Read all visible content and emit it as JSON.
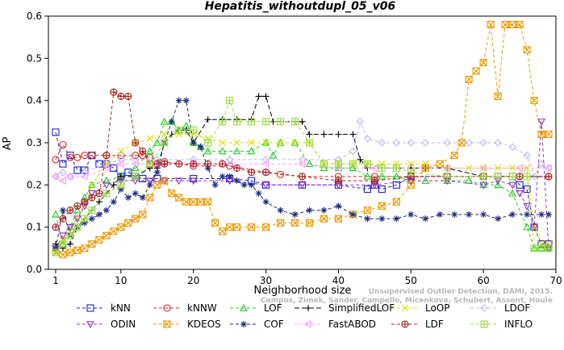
{
  "chart_data": {
    "type": "line",
    "title": "Hepatitis_withoutdupl_05_v06",
    "xlabel": "Neighborhood size",
    "ylabel": "AP",
    "xlim": [
      0,
      70
    ],
    "ylim": [
      0,
      0.6
    ],
    "xticks": [
      1,
      10,
      20,
      30,
      40,
      50,
      60,
      70
    ],
    "yticks": [
      0.0,
      0.1,
      0.2,
      0.3,
      0.4,
      0.5,
      0.6
    ],
    "grid": false,
    "legend_position": "bottom",
    "series": [
      {
        "name": "kNN",
        "color": "#2020cc",
        "marker": "square",
        "dash": "4,3",
        "x": [
          1,
          2,
          3,
          4,
          5,
          6,
          7,
          8,
          9,
          10,
          11,
          12,
          13,
          15,
          20,
          25,
          28,
          30,
          35,
          40,
          44,
          45,
          46,
          48,
          50,
          55,
          60,
          62,
          64,
          65,
          66,
          67,
          68,
          69
        ],
        "y": [
          0.325,
          0.25,
          0.27,
          0.235,
          0.235,
          0.27,
          0.25,
          0.25,
          0.24,
          0.22,
          0.23,
          0.22,
          0.215,
          0.215,
          0.215,
          0.215,
          0.21,
          0.2,
          0.2,
          0.2,
          0.19,
          0.2,
          0.19,
          0.2,
          0.22,
          0.22,
          0.22,
          0.22,
          0.22,
          0.2,
          0.19,
          0.1,
          0.06,
          0.06
        ]
      },
      {
        "name": "kNNW",
        "color": "#dd2222",
        "marker": "circle",
        "dash": "4,3",
        "x": [
          1,
          2,
          3,
          4,
          5,
          6,
          8,
          10,
          12,
          13,
          14,
          16,
          20,
          25,
          30,
          32,
          35,
          40,
          45,
          50,
          55,
          60,
          65,
          69
        ],
        "y": [
          0.26,
          0.295,
          0.265,
          0.265,
          0.27,
          0.27,
          0.27,
          0.27,
          0.27,
          0.27,
          0.265,
          0.255,
          0.245,
          0.245,
          0.23,
          0.225,
          0.22,
          0.22,
          0.22,
          0.22,
          0.22,
          0.22,
          0.22,
          0.22
        ]
      },
      {
        "name": "LOF",
        "color": "#22cc22",
        "marker": "triangle",
        "dash": "4,3",
        "x": [
          1,
          2,
          3,
          4,
          5,
          6,
          8,
          10,
          12,
          14,
          15,
          16,
          17,
          18,
          19,
          20,
          21,
          22,
          24,
          26,
          28,
          30,
          31,
          32,
          34,
          36,
          38,
          40,
          42,
          44,
          46,
          48,
          50,
          52,
          55,
          58,
          60,
          62,
          64,
          66,
          67,
          68,
          69
        ],
        "y": [
          0.13,
          0.06,
          0.1,
          0.14,
          0.17,
          0.2,
          0.21,
          0.22,
          0.24,
          0.28,
          0.3,
          0.35,
          0.35,
          0.33,
          0.34,
          0.3,
          0.29,
          0.28,
          0.28,
          0.28,
          0.28,
          0.3,
          0.27,
          0.3,
          0.3,
          0.25,
          0.24,
          0.24,
          0.24,
          0.22,
          0.22,
          0.22,
          0.21,
          0.21,
          0.21,
          0.21,
          0.2,
          0.2,
          0.18,
          0.1,
          0.05,
          0.05,
          0.05
        ]
      },
      {
        "name": "SimplifiedLOF",
        "color": "#000000",
        "marker": "plus",
        "dash": "6,3",
        "x": [
          1,
          2,
          3,
          4,
          5,
          6,
          7,
          8,
          9,
          10,
          12,
          14,
          15,
          16,
          17,
          18,
          19,
          20,
          22,
          24,
          26,
          28,
          29,
          30,
          31,
          32,
          34,
          35,
          36,
          38,
          40,
          42,
          43,
          44,
          46,
          48,
          50,
          52,
          55,
          60,
          65,
          69
        ],
        "y": [
          0.06,
          0.05,
          0.06,
          0.1,
          0.12,
          0.14,
          0.16,
          0.18,
          0.2,
          0.22,
          0.22,
          0.24,
          0.24,
          0.3,
          0.32,
          0.33,
          0.33,
          0.3,
          0.355,
          0.355,
          0.355,
          0.355,
          0.41,
          0.41,
          0.35,
          0.35,
          0.35,
          0.35,
          0.32,
          0.32,
          0.32,
          0.32,
          0.26,
          0.24,
          0.24,
          0.24,
          0.24,
          0.24,
          0.24,
          0.22,
          0.22,
          0.22
        ]
      },
      {
        "name": "LoOP",
        "color": "#dddd00",
        "marker": "x",
        "dash": "4,3",
        "x": [
          1,
          2,
          3,
          4,
          5,
          6,
          8,
          10,
          12,
          14,
          16,
          18,
          20,
          22,
          24,
          26,
          28,
          30,
          32,
          34,
          36,
          38,
          40,
          42,
          44,
          46,
          48,
          50,
          52,
          55,
          58,
          60,
          62,
          64,
          66,
          67,
          68,
          69
        ],
        "y": [
          0.05,
          0.07,
          0.09,
          0.12,
          0.15,
          0.2,
          0.25,
          0.28,
          0.3,
          0.31,
          0.32,
          0.32,
          0.32,
          0.31,
          0.3,
          0.3,
          0.3,
          0.3,
          0.3,
          0.3,
          0.3,
          0.25,
          0.25,
          0.25,
          0.25,
          0.25,
          0.25,
          0.25,
          0.25,
          0.24,
          0.24,
          0.24,
          0.24,
          0.24,
          0.24,
          0.1,
          0.06,
          0.06
        ]
      },
      {
        "name": "LDOF",
        "color": "#bbbbee",
        "marker": "diamond",
        "dash": "4,3",
        "x": [
          1,
          2,
          3,
          5,
          8,
          10,
          12,
          15,
          20,
          25,
          30,
          35,
          40,
          42,
          43,
          44,
          46,
          48,
          50,
          52,
          55,
          58,
          60,
          62,
          64,
          66,
          67,
          68,
          69
        ],
        "y": [
          0.22,
          0.23,
          0.22,
          0.23,
          0.25,
          0.26,
          0.26,
          0.26,
          0.26,
          0.26,
          0.26,
          0.26,
          0.26,
          0.28,
          0.35,
          0.31,
          0.3,
          0.3,
          0.3,
          0.3,
          0.3,
          0.3,
          0.3,
          0.3,
          0.29,
          0.27,
          0.22,
          0.25,
          0.24
        ]
      },
      {
        "name": "ODIN",
        "color": "#9933cc",
        "marker": "triangle-down",
        "dash": "4,3",
        "x": [
          1,
          2,
          3,
          4,
          5,
          6,
          8,
          10,
          12,
          14,
          16,
          18,
          20,
          25,
          30,
          35,
          40,
          45,
          50,
          55,
          60,
          62,
          64,
          65,
          66,
          67,
          68,
          69
        ],
        "y": [
          0.05,
          0.08,
          0.1,
          0.12,
          0.15,
          0.18,
          0.2,
          0.21,
          0.21,
          0.21,
          0.21,
          0.21,
          0.21,
          0.21,
          0.2,
          0.2,
          0.2,
          0.2,
          0.21,
          0.21,
          0.2,
          0.21,
          0.2,
          0.18,
          0.15,
          0.1,
          0.35,
          0.05
        ]
      },
      {
        "name": "KDEOS",
        "color": "#ee9900",
        "marker": "square-x",
        "dash": "4,3",
        "x": [
          1,
          2,
          3,
          4,
          5,
          6,
          7,
          8,
          9,
          10,
          11,
          12,
          13,
          14,
          15,
          16,
          17,
          18,
          19,
          20,
          21,
          22,
          23,
          24,
          25,
          26,
          28,
          30,
          32,
          34,
          36,
          38,
          40,
          42,
          44,
          46,
          48,
          50,
          52,
          54,
          56,
          57,
          58,
          59,
          60,
          61,
          62,
          63,
          64,
          65,
          66,
          67,
          68,
          69
        ],
        "y": [
          0.04,
          0.035,
          0.04,
          0.045,
          0.05,
          0.06,
          0.07,
          0.08,
          0.09,
          0.1,
          0.11,
          0.12,
          0.13,
          0.17,
          0.2,
          0.21,
          0.18,
          0.17,
          0.16,
          0.16,
          0.16,
          0.16,
          0.11,
          0.09,
          0.1,
          0.1,
          0.1,
          0.1,
          0.11,
          0.11,
          0.11,
          0.12,
          0.12,
          0.13,
          0.14,
          0.15,
          0.16,
          0.2,
          0.24,
          0.25,
          0.27,
          0.3,
          0.45,
          0.47,
          0.49,
          0.58,
          0.41,
          0.58,
          0.58,
          0.58,
          0.52,
          0.4,
          0.32,
          0.32
        ]
      },
      {
        "name": "COF",
        "color": "#1a2a7a",
        "marker": "star",
        "dash": "4,3",
        "x": [
          1,
          2,
          3,
          4,
          5,
          6,
          7,
          8,
          9,
          10,
          11,
          12,
          13,
          14,
          15,
          16,
          17,
          18,
          19,
          20,
          21,
          22,
          23,
          24,
          25,
          26,
          27,
          28,
          29,
          30,
          32,
          34,
          36,
          38,
          40,
          42,
          44,
          46,
          48,
          50,
          52,
          54,
          56,
          58,
          60,
          62,
          64,
          66,
          68,
          69
        ],
        "y": [
          0.05,
          0.14,
          0.08,
          0.1,
          0.11,
          0.12,
          0.13,
          0.14,
          0.16,
          0.19,
          0.17,
          0.18,
          0.17,
          0.2,
          0.23,
          0.3,
          0.35,
          0.4,
          0.4,
          0.3,
          0.29,
          0.24,
          0.2,
          0.22,
          0.22,
          0.21,
          0.2,
          0.2,
          0.18,
          0.16,
          0.14,
          0.13,
          0.14,
          0.14,
          0.15,
          0.13,
          0.12,
          0.12,
          0.12,
          0.13,
          0.12,
          0.13,
          0.13,
          0.13,
          0.13,
          0.12,
          0.13,
          0.13,
          0.13,
          0.13
        ]
      },
      {
        "name": "FastABOD",
        "color": "#ff99ff",
        "marker": "triangle-left",
        "dash": "4,3",
        "x": [
          1,
          2,
          3,
          5,
          8,
          10,
          12,
          15,
          20,
          25,
          30,
          35,
          40,
          45,
          50,
          55,
          60,
          65,
          69
        ],
        "y": [
          0.22,
          0.21,
          0.22,
          0.22,
          0.24,
          0.25,
          0.25,
          0.25,
          0.25,
          0.25,
          0.25,
          0.25,
          0.24,
          0.24,
          0.24,
          0.24,
          0.24,
          0.24,
          0.24
        ]
      },
      {
        "name": "LDF",
        "color": "#aa2222",
        "marker": "circle-plus",
        "dash": "4,3",
        "x": [
          1,
          2,
          3,
          4,
          5,
          6,
          7,
          8,
          9,
          10,
          11,
          12,
          13,
          14,
          15,
          16,
          18,
          20,
          22,
          24,
          26,
          28,
          30,
          35,
          40,
          45,
          50,
          55,
          60,
          65,
          69
        ],
        "y": [
          0.1,
          0.12,
          0.14,
          0.15,
          0.16,
          0.17,
          0.18,
          0.27,
          0.42,
          0.41,
          0.41,
          0.3,
          0.28,
          0.25,
          0.25,
          0.25,
          0.25,
          0.25,
          0.25,
          0.25,
          0.24,
          0.23,
          0.23,
          0.22,
          0.21,
          0.21,
          0.22,
          0.22,
          0.22,
          0.22,
          0.22
        ]
      },
      {
        "name": "INFLO",
        "color": "#99dd44",
        "marker": "square-cross",
        "dash": "4,3",
        "x": [
          1,
          2,
          3,
          4,
          5,
          6,
          8,
          10,
          12,
          14,
          16,
          18,
          20,
          22,
          24,
          25,
          26,
          28,
          30,
          32,
          34,
          36,
          38,
          40,
          42,
          44,
          46,
          48,
          50,
          55,
          60,
          62,
          64,
          66,
          67,
          68,
          69
        ],
        "y": [
          0.04,
          0.06,
          0.08,
          0.1,
          0.12,
          0.14,
          0.18,
          0.2,
          0.22,
          0.25,
          0.3,
          0.33,
          0.33,
          0.3,
          0.35,
          0.4,
          0.35,
          0.35,
          0.35,
          0.35,
          0.35,
          0.3,
          0.25,
          0.25,
          0.25,
          0.25,
          0.24,
          0.24,
          0.23,
          0.22,
          0.22,
          0.22,
          0.22,
          0.22,
          0.05,
          0.05,
          0.05
        ]
      }
    ]
  },
  "credit": {
    "line1": "Unsupervised Outlier Detection, DAMI, 2015.",
    "line2": "Campos, Zimek, Sander, Campello, Micenkova, Schubert, Assent, Houle"
  }
}
